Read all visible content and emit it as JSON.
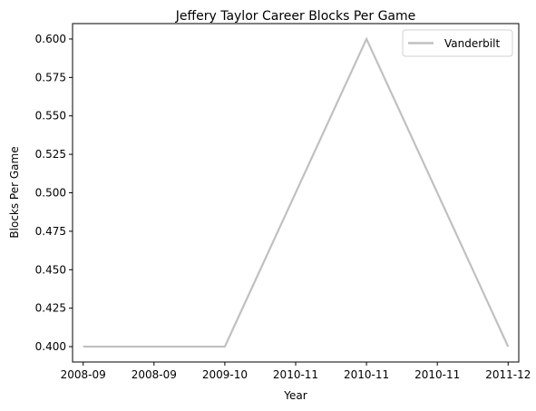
{
  "chart_data": {
    "type": "line",
    "title": "Jeffery Taylor Career Blocks Per Game",
    "xlabel": "Year",
    "ylabel": "Blocks Per Game",
    "x_tick_labels": [
      "2008-09",
      "2008-09",
      "2009-10",
      "2010-11",
      "2010-11",
      "2010-11",
      "2011-12"
    ],
    "x": [
      0,
      1,
      2,
      3,
      4,
      5,
      6
    ],
    "y_ticks": [
      "0.400",
      "0.425",
      "0.450",
      "0.475",
      "0.500",
      "0.525",
      "0.550",
      "0.575",
      "0.600"
    ],
    "ylim": [
      0.39,
      0.61
    ],
    "xlim": [
      -0.15,
      6.15
    ],
    "grid": false,
    "legend": {
      "position": "top-right"
    },
    "series": [
      {
        "name": "Vanderbilt",
        "color": "#c0c0c0",
        "points": [
          {
            "x": 0,
            "y": 0.4
          },
          {
            "x": 2,
            "y": 0.4
          },
          {
            "x": 4,
            "y": 0.6
          },
          {
            "x": 6,
            "y": 0.4
          }
        ]
      }
    ]
  }
}
